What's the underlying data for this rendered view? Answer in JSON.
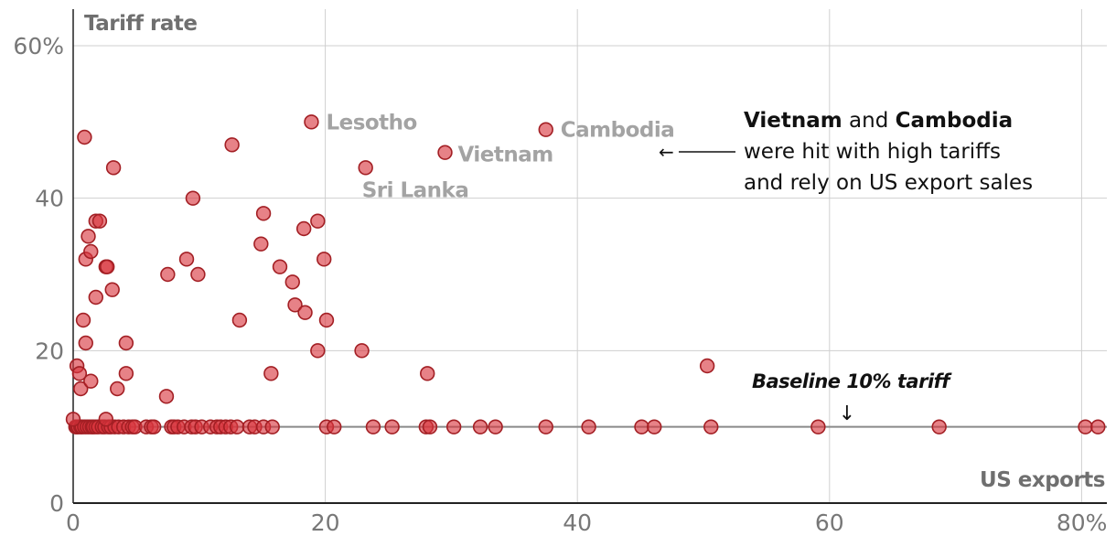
{
  "chart_data": {
    "type": "scatter",
    "title": "",
    "xlabel": "US exports",
    "ylabel": "Tariff rate",
    "xlim": [
      0,
      82
    ],
    "ylim": [
      0,
      65
    ],
    "x_ticks": [
      {
        "value": 0,
        "label": "0"
      },
      {
        "value": 20,
        "label": "20"
      },
      {
        "value": 40,
        "label": "40"
      },
      {
        "value": 60,
        "label": "60"
      },
      {
        "value": 80,
        "label": "80%"
      }
    ],
    "y_ticks": [
      {
        "value": 0,
        "label": "0"
      },
      {
        "value": 20,
        "label": "20"
      },
      {
        "value": 40,
        "label": "40"
      },
      {
        "value": 60,
        "label": "60%"
      }
    ],
    "grid": true,
    "baseline": {
      "value": 10,
      "label": "Baseline 10% tariff",
      "arrow": "↓"
    },
    "annotation": {
      "lines": [
        [
          {
            "text": "Vietnam",
            "bold": true
          },
          {
            "text": " and ",
            "bold": false
          },
          {
            "text": "Cambodia",
            "bold": true
          }
        ],
        [
          {
            "text": "were hit with high tariffs",
            "bold": false
          }
        ],
        [
          {
            "text": "and rely on US export sales",
            "bold": false
          }
        ]
      ],
      "arrow": "←"
    },
    "points": [
      {
        "x": 0.2,
        "y": 10
      },
      {
        "x": 0.3,
        "y": 10
      },
      {
        "x": 0.4,
        "y": 10
      },
      {
        "x": 0.6,
        "y": 10
      },
      {
        "x": 0.7,
        "y": 10
      },
      {
        "x": 0.9,
        "y": 10
      },
      {
        "x": 1.1,
        "y": 10
      },
      {
        "x": 1.3,
        "y": 10
      },
      {
        "x": 1.5,
        "y": 10
      },
      {
        "x": 1.6,
        "y": 10
      },
      {
        "x": 1.8,
        "y": 10
      },
      {
        "x": 2.0,
        "y": 10
      },
      {
        "x": 2.3,
        "y": 10
      },
      {
        "x": 2.5,
        "y": 10
      },
      {
        "x": 2.8,
        "y": 10
      },
      {
        "x": 3.0,
        "y": 10
      },
      {
        "x": 3.3,
        "y": 10
      },
      {
        "x": 3.6,
        "y": 10
      },
      {
        "x": 4.0,
        "y": 10
      },
      {
        "x": 4.4,
        "y": 10
      },
      {
        "x": 4.7,
        "y": 10
      },
      {
        "x": 4.9,
        "y": 10
      },
      {
        "x": 5.8,
        "y": 10
      },
      {
        "x": 6.2,
        "y": 10
      },
      {
        "x": 6.4,
        "y": 10
      },
      {
        "x": 7.8,
        "y": 10
      },
      {
        "x": 8.0,
        "y": 10
      },
      {
        "x": 8.3,
        "y": 10
      },
      {
        "x": 8.8,
        "y": 10
      },
      {
        "x": 9.4,
        "y": 10
      },
      {
        "x": 9.7,
        "y": 10
      },
      {
        "x": 10.2,
        "y": 10
      },
      {
        "x": 10.9,
        "y": 10
      },
      {
        "x": 11.4,
        "y": 10
      },
      {
        "x": 11.7,
        "y": 10
      },
      {
        "x": 12.1,
        "y": 10
      },
      {
        "x": 12.5,
        "y": 10
      },
      {
        "x": 13.0,
        "y": 10
      },
      {
        "x": 14.0,
        "y": 10
      },
      {
        "x": 14.4,
        "y": 10
      },
      {
        "x": 15.1,
        "y": 10
      },
      {
        "x": 15.8,
        "y": 10
      },
      {
        "x": 20.1,
        "y": 10
      },
      {
        "x": 20.7,
        "y": 10
      },
      {
        "x": 23.8,
        "y": 10
      },
      {
        "x": 25.3,
        "y": 10
      },
      {
        "x": 28.0,
        "y": 10
      },
      {
        "x": 28.3,
        "y": 10
      },
      {
        "x": 30.2,
        "y": 10
      },
      {
        "x": 32.3,
        "y": 10
      },
      {
        "x": 33.5,
        "y": 10
      },
      {
        "x": 37.5,
        "y": 10
      },
      {
        "x": 40.9,
        "y": 10
      },
      {
        "x": 45.1,
        "y": 10
      },
      {
        "x": 46.1,
        "y": 10
      },
      {
        "x": 50.6,
        "y": 10
      },
      {
        "x": 59.1,
        "y": 10
      },
      {
        "x": 68.7,
        "y": 10
      },
      {
        "x": 80.3,
        "y": 10
      },
      {
        "x": 81.3,
        "y": 10
      },
      {
        "x": 0.0,
        "y": 11
      },
      {
        "x": 2.6,
        "y": 11
      },
      {
        "x": 0.3,
        "y": 18
      },
      {
        "x": 0.5,
        "y": 17
      },
      {
        "x": 0.6,
        "y": 15
      },
      {
        "x": 1.4,
        "y": 16
      },
      {
        "x": 0.8,
        "y": 24
      },
      {
        "x": 1.0,
        "y": 21
      },
      {
        "x": 1.0,
        "y": 32
      },
      {
        "x": 1.2,
        "y": 35
      },
      {
        "x": 1.4,
        "y": 33
      },
      {
        "x": 0.9,
        "y": 48
      },
      {
        "x": 1.8,
        "y": 27
      },
      {
        "x": 1.8,
        "y": 37
      },
      {
        "x": 2.1,
        "y": 37
      },
      {
        "x": 2.6,
        "y": 31
      },
      {
        "x": 2.7,
        "y": 31
      },
      {
        "x": 3.1,
        "y": 28
      },
      {
        "x": 3.2,
        "y": 44
      },
      {
        "x": 3.5,
        "y": 15
      },
      {
        "x": 4.2,
        "y": 21
      },
      {
        "x": 4.2,
        "y": 17
      },
      {
        "x": 7.4,
        "y": 14
      },
      {
        "x": 7.5,
        "y": 30
      },
      {
        "x": 9.0,
        "y": 32
      },
      {
        "x": 9.5,
        "y": 40
      },
      {
        "x": 9.9,
        "y": 30
      },
      {
        "x": 12.6,
        "y": 47
      },
      {
        "x": 13.2,
        "y": 24
      },
      {
        "x": 14.9,
        "y": 34
      },
      {
        "x": 15.1,
        "y": 38
      },
      {
        "x": 15.7,
        "y": 17
      },
      {
        "x": 16.4,
        "y": 31
      },
      {
        "x": 17.4,
        "y": 29
      },
      {
        "x": 17.6,
        "y": 26
      },
      {
        "x": 18.3,
        "y": 36
      },
      {
        "x": 18.4,
        "y": 25
      },
      {
        "x": 18.9,
        "y": 50
      },
      {
        "x": 19.4,
        "y": 37
      },
      {
        "x": 19.4,
        "y": 20
      },
      {
        "x": 19.9,
        "y": 32
      },
      {
        "x": 20.1,
        "y": 24
      },
      {
        "x": 22.9,
        "y": 20
      },
      {
        "x": 23.2,
        "y": 44
      },
      {
        "x": 28.1,
        "y": 17
      },
      {
        "x": 29.5,
        "y": 46
      },
      {
        "x": 37.5,
        "y": 49
      },
      {
        "x": 50.3,
        "y": 18
      }
    ],
    "labels": [
      {
        "text": "Lesotho",
        "x": 18.9,
        "y": 50
      },
      {
        "text": "Cambodia",
        "x": 37.5,
        "y": 49
      },
      {
        "text": "Vietnam",
        "x": 29.5,
        "y": 46
      },
      {
        "text": "Sri Lanka",
        "x": 23.2,
        "y": 44
      }
    ]
  }
}
